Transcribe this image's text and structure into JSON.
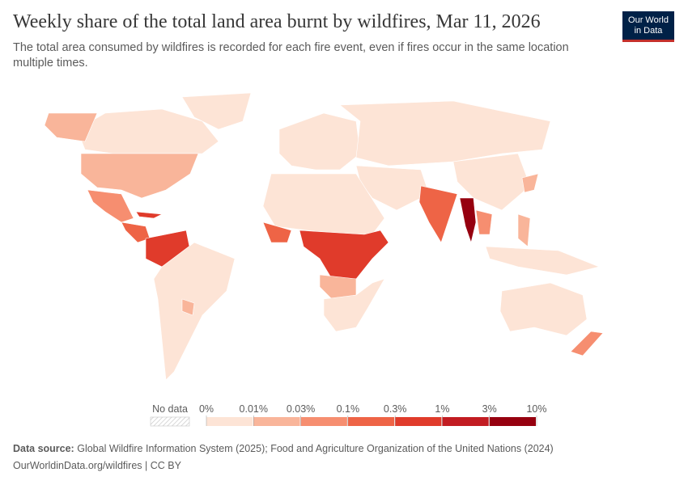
{
  "header": {
    "title": "Weekly share of the total land area burnt by wildfires, Mar 11, 2026",
    "subtitle": "The total area consumed by wildfires is recorded for each fire event, even if fires occur in the same location multiple times."
  },
  "logo": {
    "line1": "Our World",
    "line2": "in Data"
  },
  "legend": {
    "no_data": "No data",
    "colors": [
      "#fde4d6",
      "#f9b59a",
      "#f68e70",
      "#ee6446",
      "#e03b2b",
      "#c21c22",
      "#96000f"
    ],
    "ticks": [
      {
        "value": 0,
        "label": "0%"
      },
      {
        "value": 0.01,
        "label": "0.01%"
      },
      {
        "value": 0.03,
        "label": "0.03%"
      },
      {
        "value": 0.1,
        "label": "0.1%"
      },
      {
        "value": 0.3,
        "label": "0.3%"
      },
      {
        "value": 1,
        "label": "1%"
      },
      {
        "value": 3,
        "label": "3%"
      },
      {
        "value": 10,
        "label": "10%"
      }
    ]
  },
  "footer": {
    "source_label": "Data source:",
    "source": "Global Wildfire Information System (2025); Food and Agriculture Organization of the United Nations (2024)",
    "url": "OurWorldinData.org/wildfires | CC BY"
  }
}
